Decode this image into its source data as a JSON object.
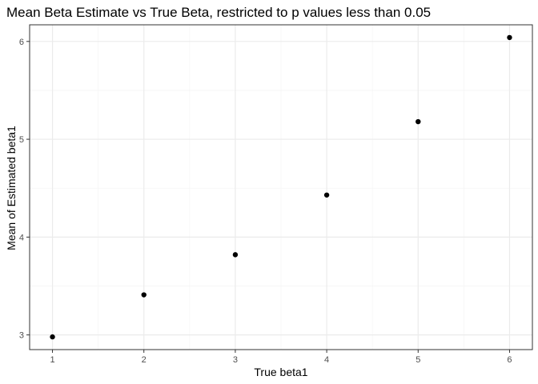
{
  "chart_data": {
    "type": "scatter",
    "title": "Mean Beta Estimate vs True Beta, restricted to p values less than 0.05",
    "xlabel": "True beta1",
    "ylabel": "Mean of Estimated beta1",
    "x": [
      1,
      2,
      3,
      4,
      5,
      6
    ],
    "y": [
      2.98,
      3.41,
      3.82,
      4.43,
      5.18,
      6.04
    ],
    "xlim": [
      0.75,
      6.25
    ],
    "ylim": [
      2.85,
      6.17
    ],
    "xticks": [
      1,
      2,
      3,
      4,
      5,
      6
    ],
    "yticks": [
      3,
      4,
      5,
      6
    ],
    "xtick_labels": [
      "1",
      "2",
      "3",
      "4",
      "5",
      "6"
    ],
    "ytick_labels": [
      "3",
      "4",
      "5",
      "6"
    ],
    "grid": true,
    "legend": "none",
    "colors": {
      "points": "#000000",
      "grid_major": "#ebebeb",
      "grid_minor": "#f5f5f5",
      "panel_border": "#333333",
      "tick_text": "#4d4d4d"
    }
  }
}
